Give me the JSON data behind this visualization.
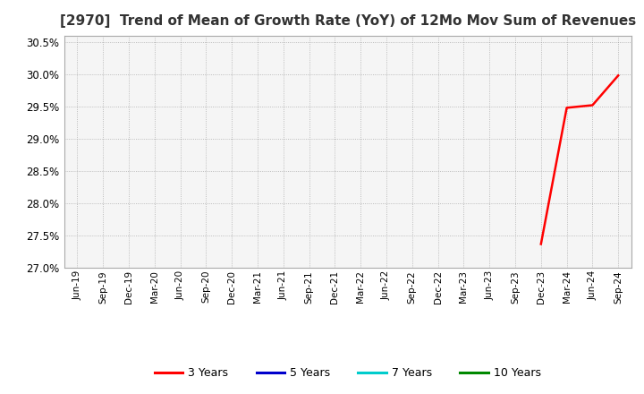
{
  "title": "[2970]  Trend of Mean of Growth Rate (YoY) of 12Mo Mov Sum of Revenues",
  "title_fontsize": 11,
  "ylim": [
    0.27,
    0.306
  ],
  "yticks": [
    0.27,
    0.275,
    0.28,
    0.285,
    0.29,
    0.295,
    0.3,
    0.305
  ],
  "background_color": "#ffffff",
  "plot_bg_color": "#f5f5f5",
  "grid_color": "#999999",
  "line_color_3y": "#ff0000",
  "line_color_5y": "#0000cc",
  "line_color_7y": "#00cccc",
  "line_color_10y": "#008800",
  "legend_labels": [
    "3 Years",
    "5 Years",
    "7 Years",
    "10 Years"
  ],
  "x_dates": [
    "Jun-19",
    "Sep-19",
    "Dec-19",
    "Mar-20",
    "Jun-20",
    "Sep-20",
    "Dec-20",
    "Mar-21",
    "Jun-21",
    "Sep-21",
    "Dec-21",
    "Mar-22",
    "Jun-22",
    "Sep-22",
    "Dec-22",
    "Mar-23",
    "Jun-23",
    "Sep-23",
    "Dec-23",
    "Mar-24",
    "Jun-24",
    "Sep-24"
  ],
  "series_3y": [
    null,
    null,
    null,
    null,
    null,
    null,
    null,
    null,
    null,
    null,
    null,
    null,
    null,
    null,
    null,
    null,
    null,
    null,
    0.2737,
    0.2948,
    0.2952,
    0.2998
  ]
}
